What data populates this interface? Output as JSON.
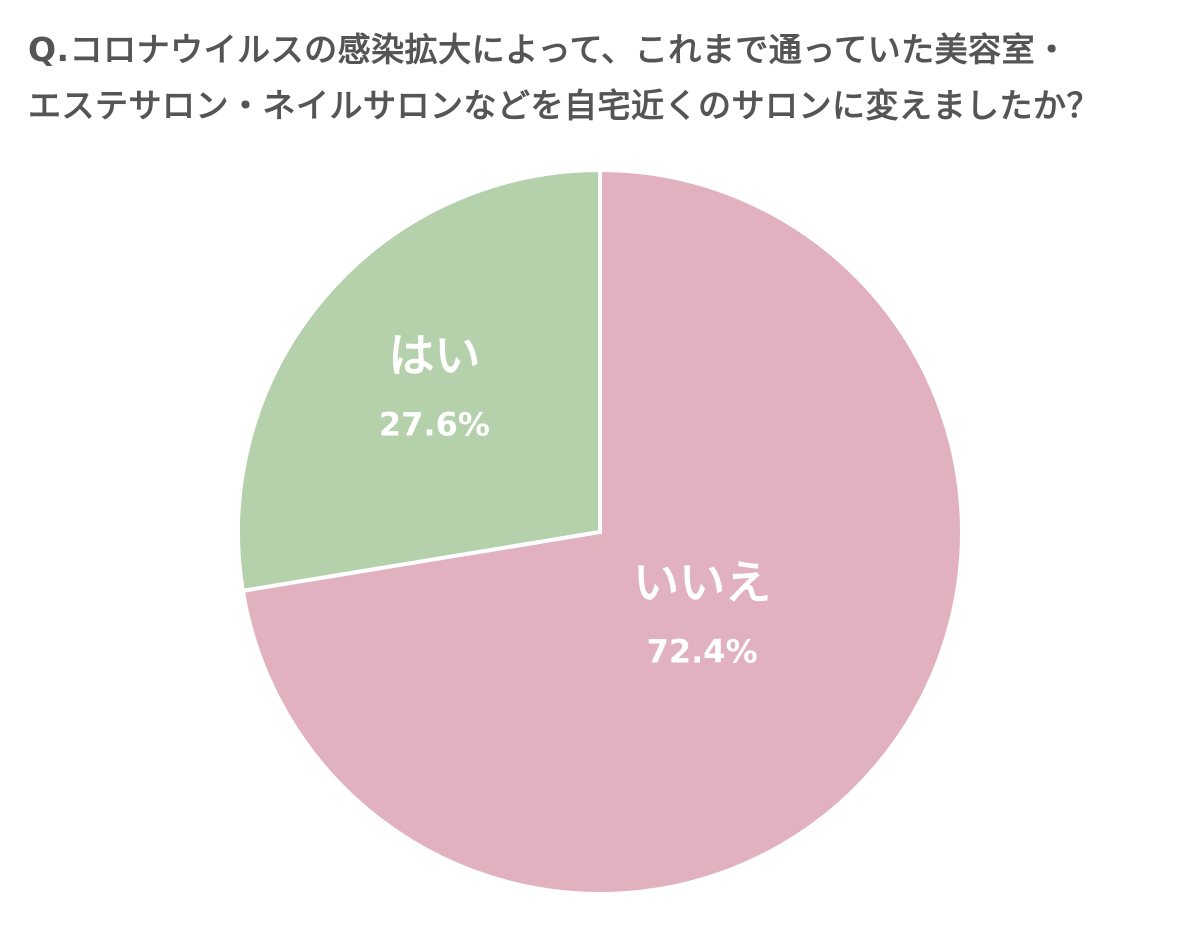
{
  "chart_data": {
    "type": "pie",
    "title_lines": [
      "Q.コロナウイルスの感染拡大によって、これまで通っていた美容室・",
      "エステサロン・ネイルサロンなどを自宅近くのサロンに変えましたか？"
    ],
    "slices": [
      {
        "label": "はい",
        "value": 27.6,
        "value_label": "27.6%",
        "color": "#b4d1ac"
      },
      {
        "label": "いいえ",
        "value": 72.4,
        "value_label": "72.4%",
        "color": "#e2b1c0"
      }
    ],
    "start": "12 o'clock, counter-clockwise"
  }
}
